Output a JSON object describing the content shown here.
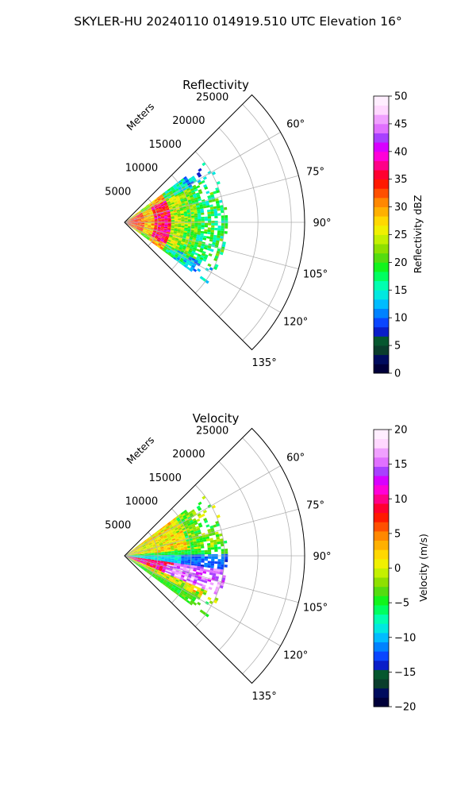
{
  "figure_title": "SKYLER-HU  20240110  014919.510 UTC Elevation 16°",
  "chart_data": [
    {
      "type": "heatmap",
      "title": "Reflectivity",
      "projection": "polar-sector",
      "azimuth_range_deg": [
        45,
        135
      ],
      "azimuth_ticks": [
        "60°",
        "75°",
        "90°",
        "105°",
        "120°",
        "135°"
      ],
      "range_unit_label": "Meters",
      "range_max_m": 27000,
      "range_ticks": [
        "5000",
        "10000",
        "15000",
        "20000",
        "25000"
      ],
      "data_azimuth_span_deg": [
        53,
        126
      ],
      "data_max_range_m": 15500,
      "features": [
        {
          "name": "near-range core",
          "range_m": [
            0,
            3000
          ],
          "value_dbz": 33
        },
        {
          "name": "high reflectivity ring",
          "range_m": [
            4500,
            7000
          ],
          "value_dbz": 36
        },
        {
          "name": "mid-range echoes",
          "range_m": [
            7000,
            11000
          ],
          "value_dbz": 22
        },
        {
          "name": "far-range echoes",
          "range_m": [
            11000,
            15500
          ],
          "value_dbz": 18
        }
      ],
      "colorbar": {
        "label": "Reflectivity dBZ",
        "min": 0,
        "max": 50,
        "ticks": [
          "0",
          "5",
          "10",
          "15",
          "20",
          "25",
          "30",
          "35",
          "40",
          "45",
          "50"
        ],
        "colors": [
          "#00003a",
          "#000c5e",
          "#0a3d2c",
          "#06572f",
          "#0a1ec8",
          "#0a46ff",
          "#0082ff",
          "#00bcff",
          "#00e8e0",
          "#00ffb0",
          "#00ff60",
          "#12f41c",
          "#54dc10",
          "#8ee000",
          "#c4f000",
          "#f0f000",
          "#ffd800",
          "#ffb000",
          "#ff8800",
          "#ff5000",
          "#ff1a00",
          "#ff0030",
          "#ff0088",
          "#ff00d8",
          "#d800ff",
          "#a840ff",
          "#e070ff",
          "#f0a0ff",
          "#ffd8ff",
          "#ffeeff"
        ]
      }
    },
    {
      "type": "heatmap",
      "title": "Velocity",
      "projection": "polar-sector",
      "azimuth_range_deg": [
        45,
        135
      ],
      "azimuth_ticks": [
        "60°",
        "75°",
        "90°",
        "105°",
        "120°",
        "135°"
      ],
      "range_unit_label": "Meters",
      "range_max_m": 27000,
      "range_ticks": [
        "5000",
        "10000",
        "15000",
        "20000",
        "25000"
      ],
      "data_azimuth_span_deg": [
        53,
        126
      ],
      "data_max_range_m": 15500,
      "features": [
        {
          "name": "northern sector",
          "azimuth_deg": [
            53,
            83
          ],
          "value_ms": 1
        },
        {
          "name": "centre band",
          "azimuth_deg": [
            86,
            96
          ],
          "value_ms": -9
        },
        {
          "name": "southern sector core",
          "azimuth_deg": [
            97,
            112
          ],
          "value_ms": 12
        },
        {
          "name": "southern edge",
          "azimuth_deg": [
            112,
            126
          ],
          "value_ms": -4
        }
      ],
      "colorbar": {
        "label": "Velocity (m/s)",
        "min": -20,
        "max": 20,
        "ticks": [
          "-20",
          "-15",
          "-10",
          "-5",
          "0",
          "5",
          "10",
          "15",
          "20"
        ],
        "colors": [
          "#00003a",
          "#000c5e",
          "#0a3d2c",
          "#06572f",
          "#0a1ec8",
          "#0a46ff",
          "#0082ff",
          "#00bcff",
          "#00e8e0",
          "#00ffb0",
          "#00ff60",
          "#12f41c",
          "#54dc10",
          "#8ee000",
          "#c4f000",
          "#f0f000",
          "#ffd800",
          "#ffb000",
          "#ff8800",
          "#ff5000",
          "#ff1a00",
          "#ff0030",
          "#ff0088",
          "#ff00d8",
          "#d800ff",
          "#a840ff",
          "#e070ff",
          "#f0a0ff",
          "#ffd8ff",
          "#ffeeff"
        ]
      }
    }
  ]
}
